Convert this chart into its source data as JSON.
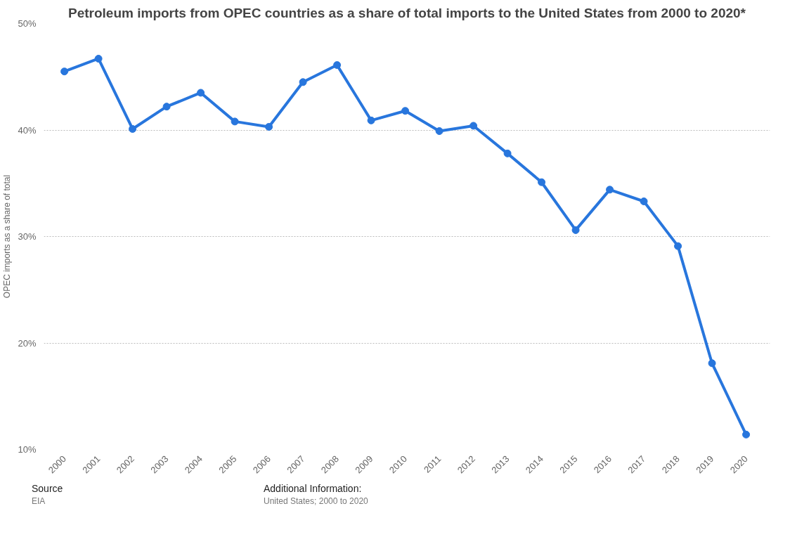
{
  "chart_data": {
    "type": "line",
    "title": "Petroleum imports from OPEC countries as a share of total imports to the United States from 2000 to 2020*",
    "ylabel": "OPEC imports as a share of total",
    "categories": [
      "2000",
      "2001",
      "2002",
      "2003",
      "2004",
      "2005",
      "2006",
      "2007",
      "2008",
      "2009",
      "2010",
      "2011",
      "2012",
      "2013",
      "2014",
      "2015",
      "2016",
      "2017",
      "2018",
      "2019",
      "2020"
    ],
    "series": [
      {
        "color": "#2876dd",
        "values": [
          45.5,
          46.7,
          40.1,
          42.2,
          43.5,
          40.8,
          40.3,
          44.5,
          46.1,
          40.9,
          41.8,
          39.9,
          40.4,
          37.8,
          35.1,
          30.6,
          34.4,
          33.3,
          29.1,
          18.1,
          11.4
        ]
      }
    ],
    "ylim": [
      10,
      50
    ],
    "yticks": [
      {
        "value": 10,
        "label": "10%"
      },
      {
        "value": 20,
        "label": "20%"
      },
      {
        "value": 30,
        "label": "30%"
      },
      {
        "value": 40,
        "label": "40%"
      },
      {
        "value": 50,
        "label": "50%"
      }
    ],
    "grid": "y",
    "marker": "circle",
    "line_style": "solid",
    "annotations": [
      "Source",
      "EIA",
      "Additional Information:",
      "United States; 2000 to 2020"
    ]
  }
}
